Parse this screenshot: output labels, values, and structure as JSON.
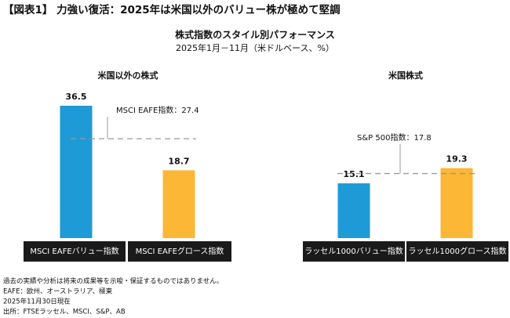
{
  "header": {
    "title": "【図表1】 力強い復活：2025年は米国以外のバリュー株が極めて堅調"
  },
  "title": "株式指数のスタイル別パフォーマンス",
  "subtitle": "2025年1月－11月（米ドルベース、%）",
  "chart_data": [
    {
      "type": "bar",
      "title": "米国以外の株式",
      "categories": [
        "MSCI EAFEバリュー指数",
        "MSCI EAFEグロース指数"
      ],
      "values": [
        36.5,
        18.7
      ],
      "colors": [
        "#1e9ad6",
        "#fbb735"
      ],
      "reference": {
        "label": "MSCI EAFE指数：27.4",
        "value": 27.4
      }
    },
    {
      "type": "bar",
      "title": "米国株式",
      "categories": [
        "ラッセル1000バリュー指数",
        "ラッセル1000グロース指数"
      ],
      "values": [
        15.1,
        19.3
      ],
      "colors": [
        "#1e9ad6",
        "#fbb735"
      ],
      "reference": {
        "label": "S&P 500指数：17.8",
        "value": 17.8
      }
    }
  ],
  "notes": [
    "過去の実績や分析は将来の成果等を示唆・保証するものではありません。",
    "EAFE：欧州、オーストラリア、極東",
    "2025年11月30日現在",
    "出所：FTSEラッセル、MSCI、S&P、AB"
  ]
}
